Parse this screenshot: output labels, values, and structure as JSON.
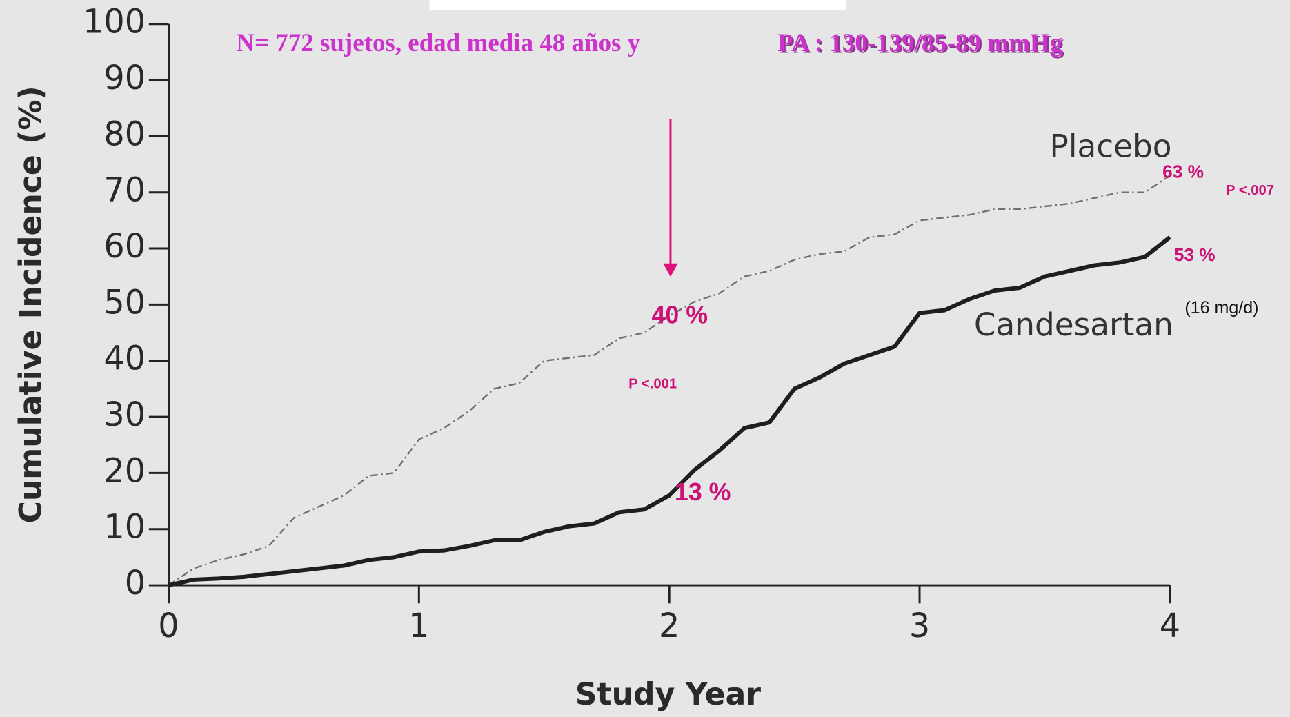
{
  "chart_data": {
    "type": "line",
    "title": "N= 772 sujetos, edad media 48 años y ",
    "subtitle": "PA : 130-139/85-89 mmHg",
    "x_label": "Study Year",
    "y_label": "Cumulative Incidence (%)",
    "x": [
      0,
      0.1,
      0.2,
      0.3,
      0.4,
      0.5,
      0.6,
      0.7,
      0.8,
      0.9,
      1.0,
      1.1,
      1.2,
      1.3,
      1.4,
      1.5,
      1.6,
      1.7,
      1.8,
      1.9,
      2.0,
      2.1,
      2.2,
      2.3,
      2.4,
      2.5,
      2.6,
      2.7,
      2.8,
      2.9,
      3.0,
      3.1,
      3.2,
      3.3,
      3.4,
      3.5,
      3.6,
      3.7,
      3.8,
      3.9,
      4.0
    ],
    "series": [
      {
        "name": "Placebo",
        "color": "#707070",
        "dashed": true,
        "values": [
          0,
          3,
          4.5,
          5.5,
          7,
          12,
          14,
          16,
          19.5,
          20,
          26,
          28,
          31,
          35,
          36,
          40,
          40.5,
          41,
          44,
          45,
          48,
          50.5,
          52,
          55,
          56,
          58,
          59,
          59.5,
          62,
          62.5,
          65,
          65.5,
          66,
          67,
          67,
          67.5,
          68,
          69,
          70,
          70,
          73
        ]
      },
      {
        "name": "Candesartan",
        "color": "#1e1e1e",
        "dashed": false,
        "values": [
          0,
          1,
          1.2,
          1.5,
          2,
          2.5,
          3,
          3.5,
          4.5,
          5,
          6,
          6.2,
          7,
          8,
          8,
          9.5,
          10.5,
          11,
          13,
          13.5,
          16,
          20.5,
          24,
          28,
          29,
          35,
          37,
          39.5,
          41,
          42.5,
          48.5,
          49,
          51,
          52.5,
          53,
          55,
          56,
          57,
          57.5,
          58.5,
          62
        ]
      }
    ],
    "xlim": [
      0,
      4
    ],
    "xticks": [
      0,
      1,
      2,
      3,
      4
    ],
    "ylim": [
      0,
      100
    ],
    "yticks": [
      0,
      10,
      20,
      30,
      40,
      50,
      60,
      70,
      80,
      90,
      100
    ],
    "annotations": [
      "63 %",
      "P <.007",
      "53 %",
      "(16 mg/d)",
      "40 %",
      "P <.001",
      "13 %"
    ]
  }
}
